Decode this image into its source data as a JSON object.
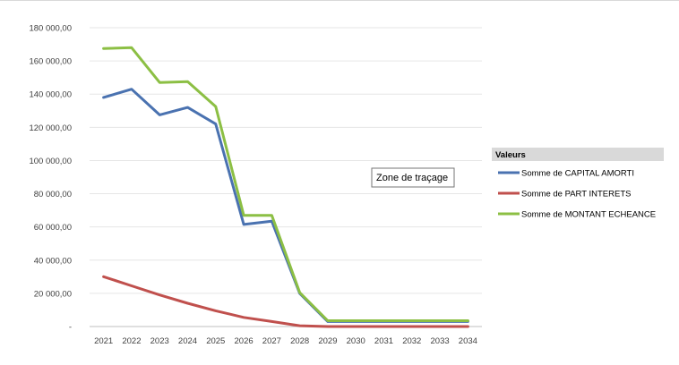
{
  "chart_data": {
    "type": "line",
    "categories": [
      "2021",
      "2022",
      "2023",
      "2024",
      "2025",
      "2026",
      "2027",
      "2028",
      "2029",
      "2030",
      "2031",
      "2032",
      "2033",
      "2034"
    ],
    "ylim": [
      0,
      180000
    ],
    "yticks": [
      0,
      20000,
      40000,
      60000,
      80000,
      100000,
      120000,
      140000,
      160000,
      180000
    ],
    "ytick_labels": [
      "-",
      "20 000,00",
      "40 000,00",
      "60 000,00",
      "80 000,00",
      "100 000,00",
      "120 000,00",
      "140 000,00",
      "160 000,00",
      "180 000,00"
    ],
    "grid": true,
    "legend": {
      "title": "Valeurs",
      "position": "right"
    },
    "series": [
      {
        "name": "Somme de CAPITAL AMORTI",
        "color": "#4a72b0",
        "values": [
          138000,
          143000,
          127500,
          132000,
          122000,
          61500,
          63500,
          20000,
          3000,
          3000,
          3000,
          3000,
          3000,
          3000
        ]
      },
      {
        "name": "Somme de PART INTERETS",
        "color": "#c0504d",
        "values": [
          30000,
          24500,
          19000,
          14000,
          9500,
          5500,
          3000,
          500,
          0,
          0,
          0,
          0,
          0,
          0
        ]
      },
      {
        "name": "Somme de MONTANT ECHEANCE",
        "color": "#8cbf44",
        "values": [
          167500,
          168000,
          147000,
          147500,
          132500,
          67000,
          67000,
          20500,
          3500,
          3500,
          3500,
          3500,
          3500,
          3500
        ]
      }
    ],
    "annotation": "Zone de traçage"
  }
}
